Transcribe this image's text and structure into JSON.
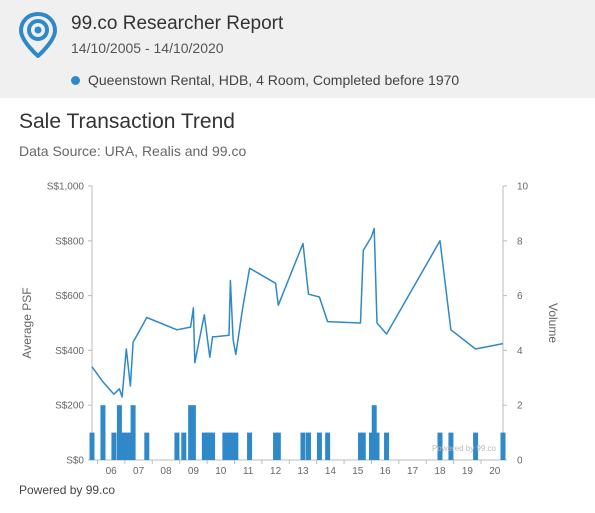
{
  "header": {
    "title": "99.co Researcher Report",
    "date_range": "14/10/2005 - 14/10/2020",
    "legend_label": "Queenstown Rental, HDB, 4 Room, Completed before 1970",
    "accent": "#2f88c8",
    "logo_icon": "map-pin-icon"
  },
  "chart_title": "Sale Transaction Trend",
  "chart_subtitle": "Data Source: URA, Realis and 99.co",
  "footer": "Powered by 99.co",
  "watermark": "Powered by 99.co",
  "chart_data": {
    "type": "line",
    "xlabel": "",
    "ylabel": "Average PSF",
    "y2label": "Volume",
    "xlim": [
      2005.8,
      2020.8
    ],
    "ylim": [
      0,
      1000
    ],
    "y2lim": [
      0,
      10
    ],
    "yticks": [
      "S$0",
      "S$200",
      "S$400",
      "S$600",
      "S$800",
      "S$1,000"
    ],
    "y2ticks": [
      "0",
      "2",
      "4",
      "6",
      "8",
      "10"
    ],
    "xticks": [
      "06",
      "07",
      "08",
      "09",
      "10",
      "11",
      "12",
      "13",
      "14",
      "15",
      "16",
      "17",
      "18",
      "19",
      "20"
    ],
    "grid": true,
    "series": [
      {
        "type": "line",
        "x": [
          2005.8,
          2006.2,
          2006.6,
          2006.8,
          2006.9,
          2007.05,
          2007.2,
          2007.3,
          2007.8,
          2008.9,
          2009.4,
          2009.5,
          2009.55,
          2009.9,
          2010.1,
          2010.2,
          2010.3,
          2010.8,
          2010.85,
          2010.95,
          2011.05,
          2011.3,
          2011.55,
          2012.5,
          2012.6,
          2013.5,
          2013.7,
          2014.1,
          2014.4,
          2015.6,
          2015.7,
          2016.0,
          2016.1,
          2016.2,
          2016.55,
          2018.5,
          2018.9,
          2019.8,
          2020.8
        ],
        "values": [
          340,
          285,
          240,
          260,
          230,
          405,
          270,
          430,
          520,
          475,
          485,
          555,
          355,
          530,
          375,
          450,
          450,
          455,
          655,
          440,
          385,
          555,
          700,
          645,
          565,
          790,
          605,
          595,
          505,
          500,
          765,
          815,
          845,
          500,
          460,
          800,
          475,
          405,
          425
        ]
      },
      {
        "type": "bar",
        "x": [
          2005.8,
          2006.2,
          2006.6,
          2006.8,
          2006.9,
          2007.05,
          2007.2,
          2007.3,
          2007.8,
          2008.9,
          2009.15,
          2009.4,
          2009.5,
          2009.9,
          2010.0,
          2010.1,
          2010.2,
          2010.65,
          2010.8,
          2010.9,
          2011.05,
          2011.55,
          2012.5,
          2012.6,
          2013.5,
          2013.7,
          2014.1,
          2014.4,
          2015.6,
          2015.7,
          2016.0,
          2016.1,
          2016.2,
          2016.55,
          2018.5,
          2018.9,
          2019.8,
          2020.8
        ],
        "values": [
          1,
          2,
          1,
          2,
          1,
          1,
          1,
          2,
          1,
          1,
          1,
          2,
          2,
          1,
          1,
          1,
          1,
          1,
          1,
          1,
          1,
          1,
          1,
          1,
          1,
          1,
          1,
          1,
          1,
          1,
          1,
          2,
          1,
          1,
          1,
          1,
          1,
          1
        ]
      }
    ]
  }
}
